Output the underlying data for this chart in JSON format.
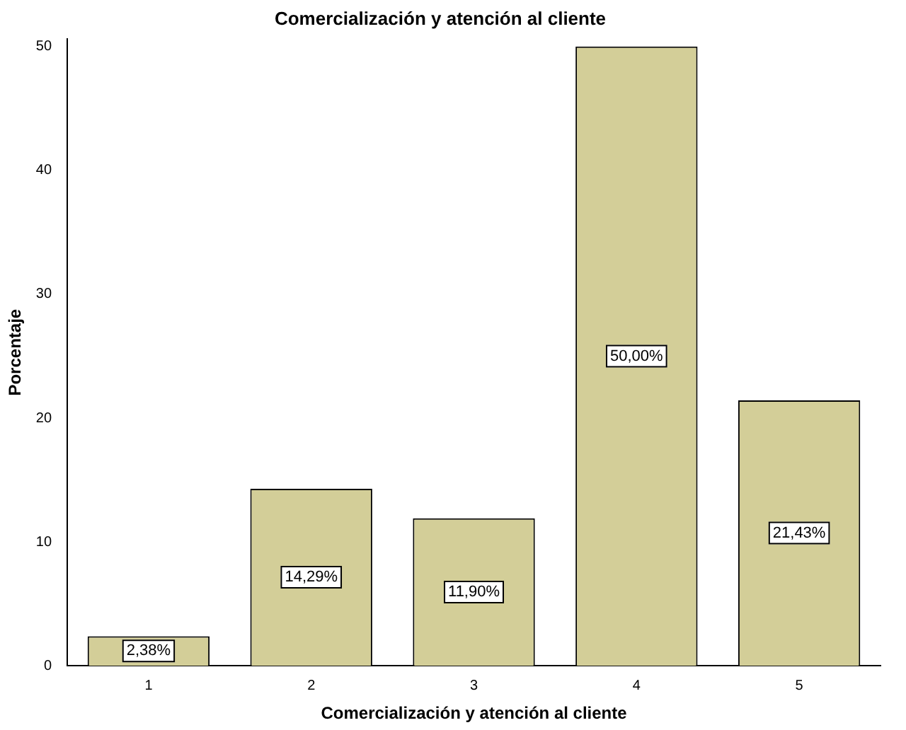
{
  "chart_data": {
    "type": "bar",
    "title": "Comercialización y atención al cliente",
    "xlabel": "Comercialización y atención al cliente",
    "ylabel": "Porcentaje",
    "categories": [
      "1",
      "2",
      "3",
      "4",
      "5"
    ],
    "values": [
      2.38,
      14.29,
      11.9,
      50.0,
      21.43
    ],
    "value_labels": [
      "2,38%",
      "14,29%",
      "11,90%",
      "50,00%",
      "21,43%"
    ],
    "color": "#d3ce98",
    "ylim": [
      0,
      50.6
    ],
    "yticks": [
      0,
      10,
      20,
      30,
      40,
      50
    ],
    "grid": false,
    "legend": false
  }
}
